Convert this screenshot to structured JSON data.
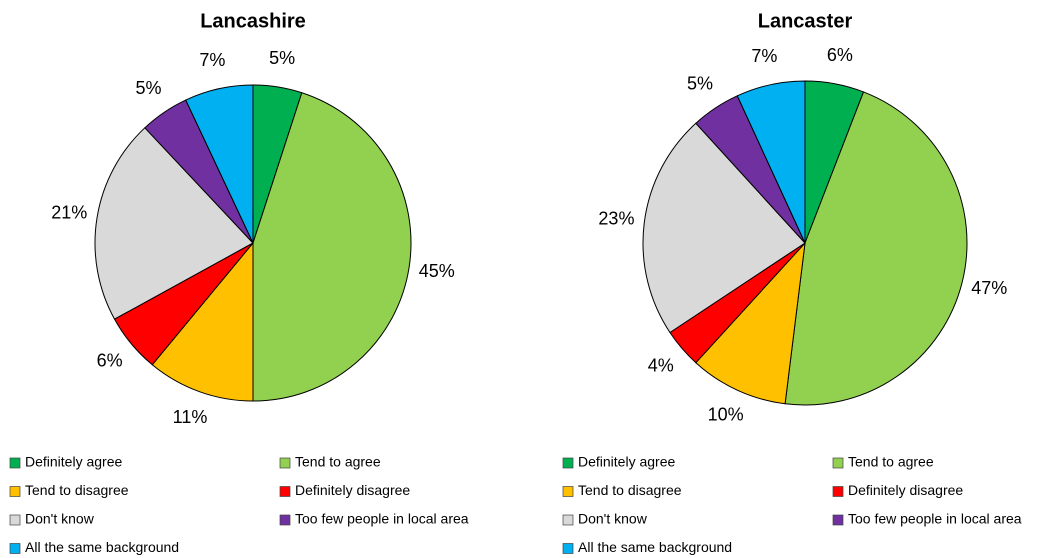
{
  "chart_data": [
    {
      "type": "pie",
      "title": "Lancashire",
      "categories": [
        "Definitely agree",
        "Tend to agree",
        "Tend to disagree",
        "Definitely disagree",
        "Don't know",
        "Too few people in local area",
        "All the same background"
      ],
      "values": [
        5,
        45,
        11,
        6,
        21,
        5,
        7
      ],
      "value_labels": [
        "5%",
        "45%",
        "11%",
        "6%",
        "21%",
        "5%",
        "7%"
      ],
      "colors": [
        "#00b050",
        "#92d050",
        "#ffc000",
        "#ff0000",
        "#d9d9d9",
        "#7030a0",
        "#00b0f0"
      ]
    },
    {
      "type": "pie",
      "title": "Lancaster",
      "categories": [
        "Definitely agree",
        "Tend to agree",
        "Tend to disagree",
        "Definitely disagree",
        "Don't know",
        "Too few people in local area",
        "All the same background"
      ],
      "values": [
        6,
        47,
        10,
        4,
        23,
        5,
        7
      ],
      "value_labels": [
        "6%",
        "47%",
        "10%",
        "4%",
        "23%",
        "5%",
        "7%"
      ],
      "colors": [
        "#00b050",
        "#92d050",
        "#ffc000",
        "#ff0000",
        "#d9d9d9",
        "#7030a0",
        "#00b0f0"
      ]
    }
  ]
}
